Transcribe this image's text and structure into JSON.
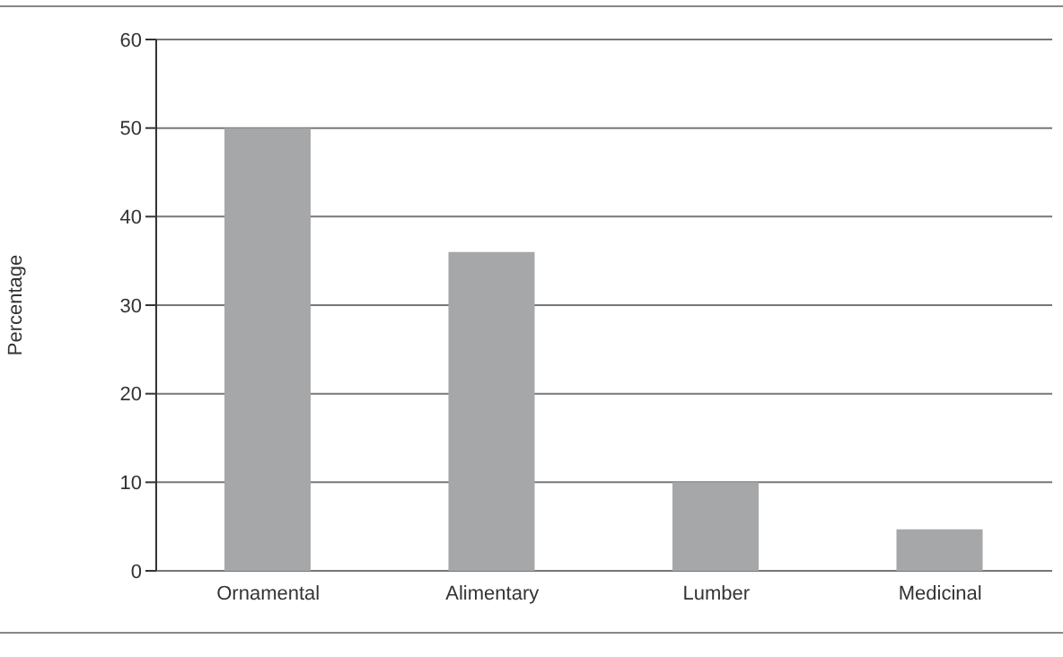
{
  "chart_data": {
    "type": "bar",
    "ylabel": "Percentage",
    "categories": [
      "Ornamental",
      "Alimentary",
      "Lumber",
      "Medicinal"
    ],
    "values": [
      50,
      36,
      10,
      4.7
    ],
    "color": "#a6a7a9",
    "ylim": [
      0,
      60
    ],
    "yticks": [
      0,
      10,
      20,
      30,
      40,
      50,
      60
    ],
    "grid": "y"
  }
}
